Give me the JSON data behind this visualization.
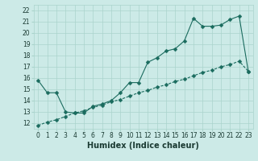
{
  "xlabel": "Humidex (Indice chaleur)",
  "background_color": "#cceae7",
  "line_color": "#1a6b5e",
  "xlim": [
    -0.5,
    23.5
  ],
  "ylim": [
    11.5,
    22.5
  ],
  "xticks": [
    0,
    1,
    2,
    3,
    4,
    5,
    6,
    7,
    8,
    9,
    10,
    11,
    12,
    13,
    14,
    15,
    16,
    17,
    18,
    19,
    20,
    21,
    22,
    23
  ],
  "yticks": [
    12,
    13,
    14,
    15,
    16,
    17,
    18,
    19,
    20,
    21,
    22
  ],
  "series1_x": [
    0,
    1,
    2,
    3,
    4,
    5,
    6,
    7,
    8,
    9,
    10,
    11,
    12,
    13,
    14,
    15,
    16,
    17,
    18,
    19,
    20,
    21,
    22,
    23
  ],
  "series1_y": [
    15.8,
    14.7,
    14.7,
    13.0,
    12.9,
    12.9,
    13.5,
    13.7,
    14.0,
    14.7,
    15.6,
    15.6,
    17.4,
    17.8,
    18.4,
    18.6,
    19.3,
    21.3,
    20.6,
    20.6,
    20.7,
    21.2,
    21.5,
    16.6
  ],
  "series2_x": [
    0,
    1,
    2,
    3,
    4,
    5,
    6,
    7,
    8,
    9,
    10,
    11,
    12,
    13,
    14,
    15,
    16,
    17,
    18,
    19,
    20,
    21,
    22,
    23
  ],
  "series2_y": [
    11.8,
    12.1,
    12.3,
    12.6,
    12.9,
    13.1,
    13.4,
    13.6,
    13.9,
    14.1,
    14.4,
    14.7,
    14.9,
    15.2,
    15.4,
    15.7,
    15.9,
    16.2,
    16.5,
    16.7,
    17.0,
    17.2,
    17.5,
    16.6
  ],
  "grid_color": "#aad4cc",
  "marker_size": 2.5,
  "tick_fontsize": 5.5,
  "xlabel_fontsize": 7
}
